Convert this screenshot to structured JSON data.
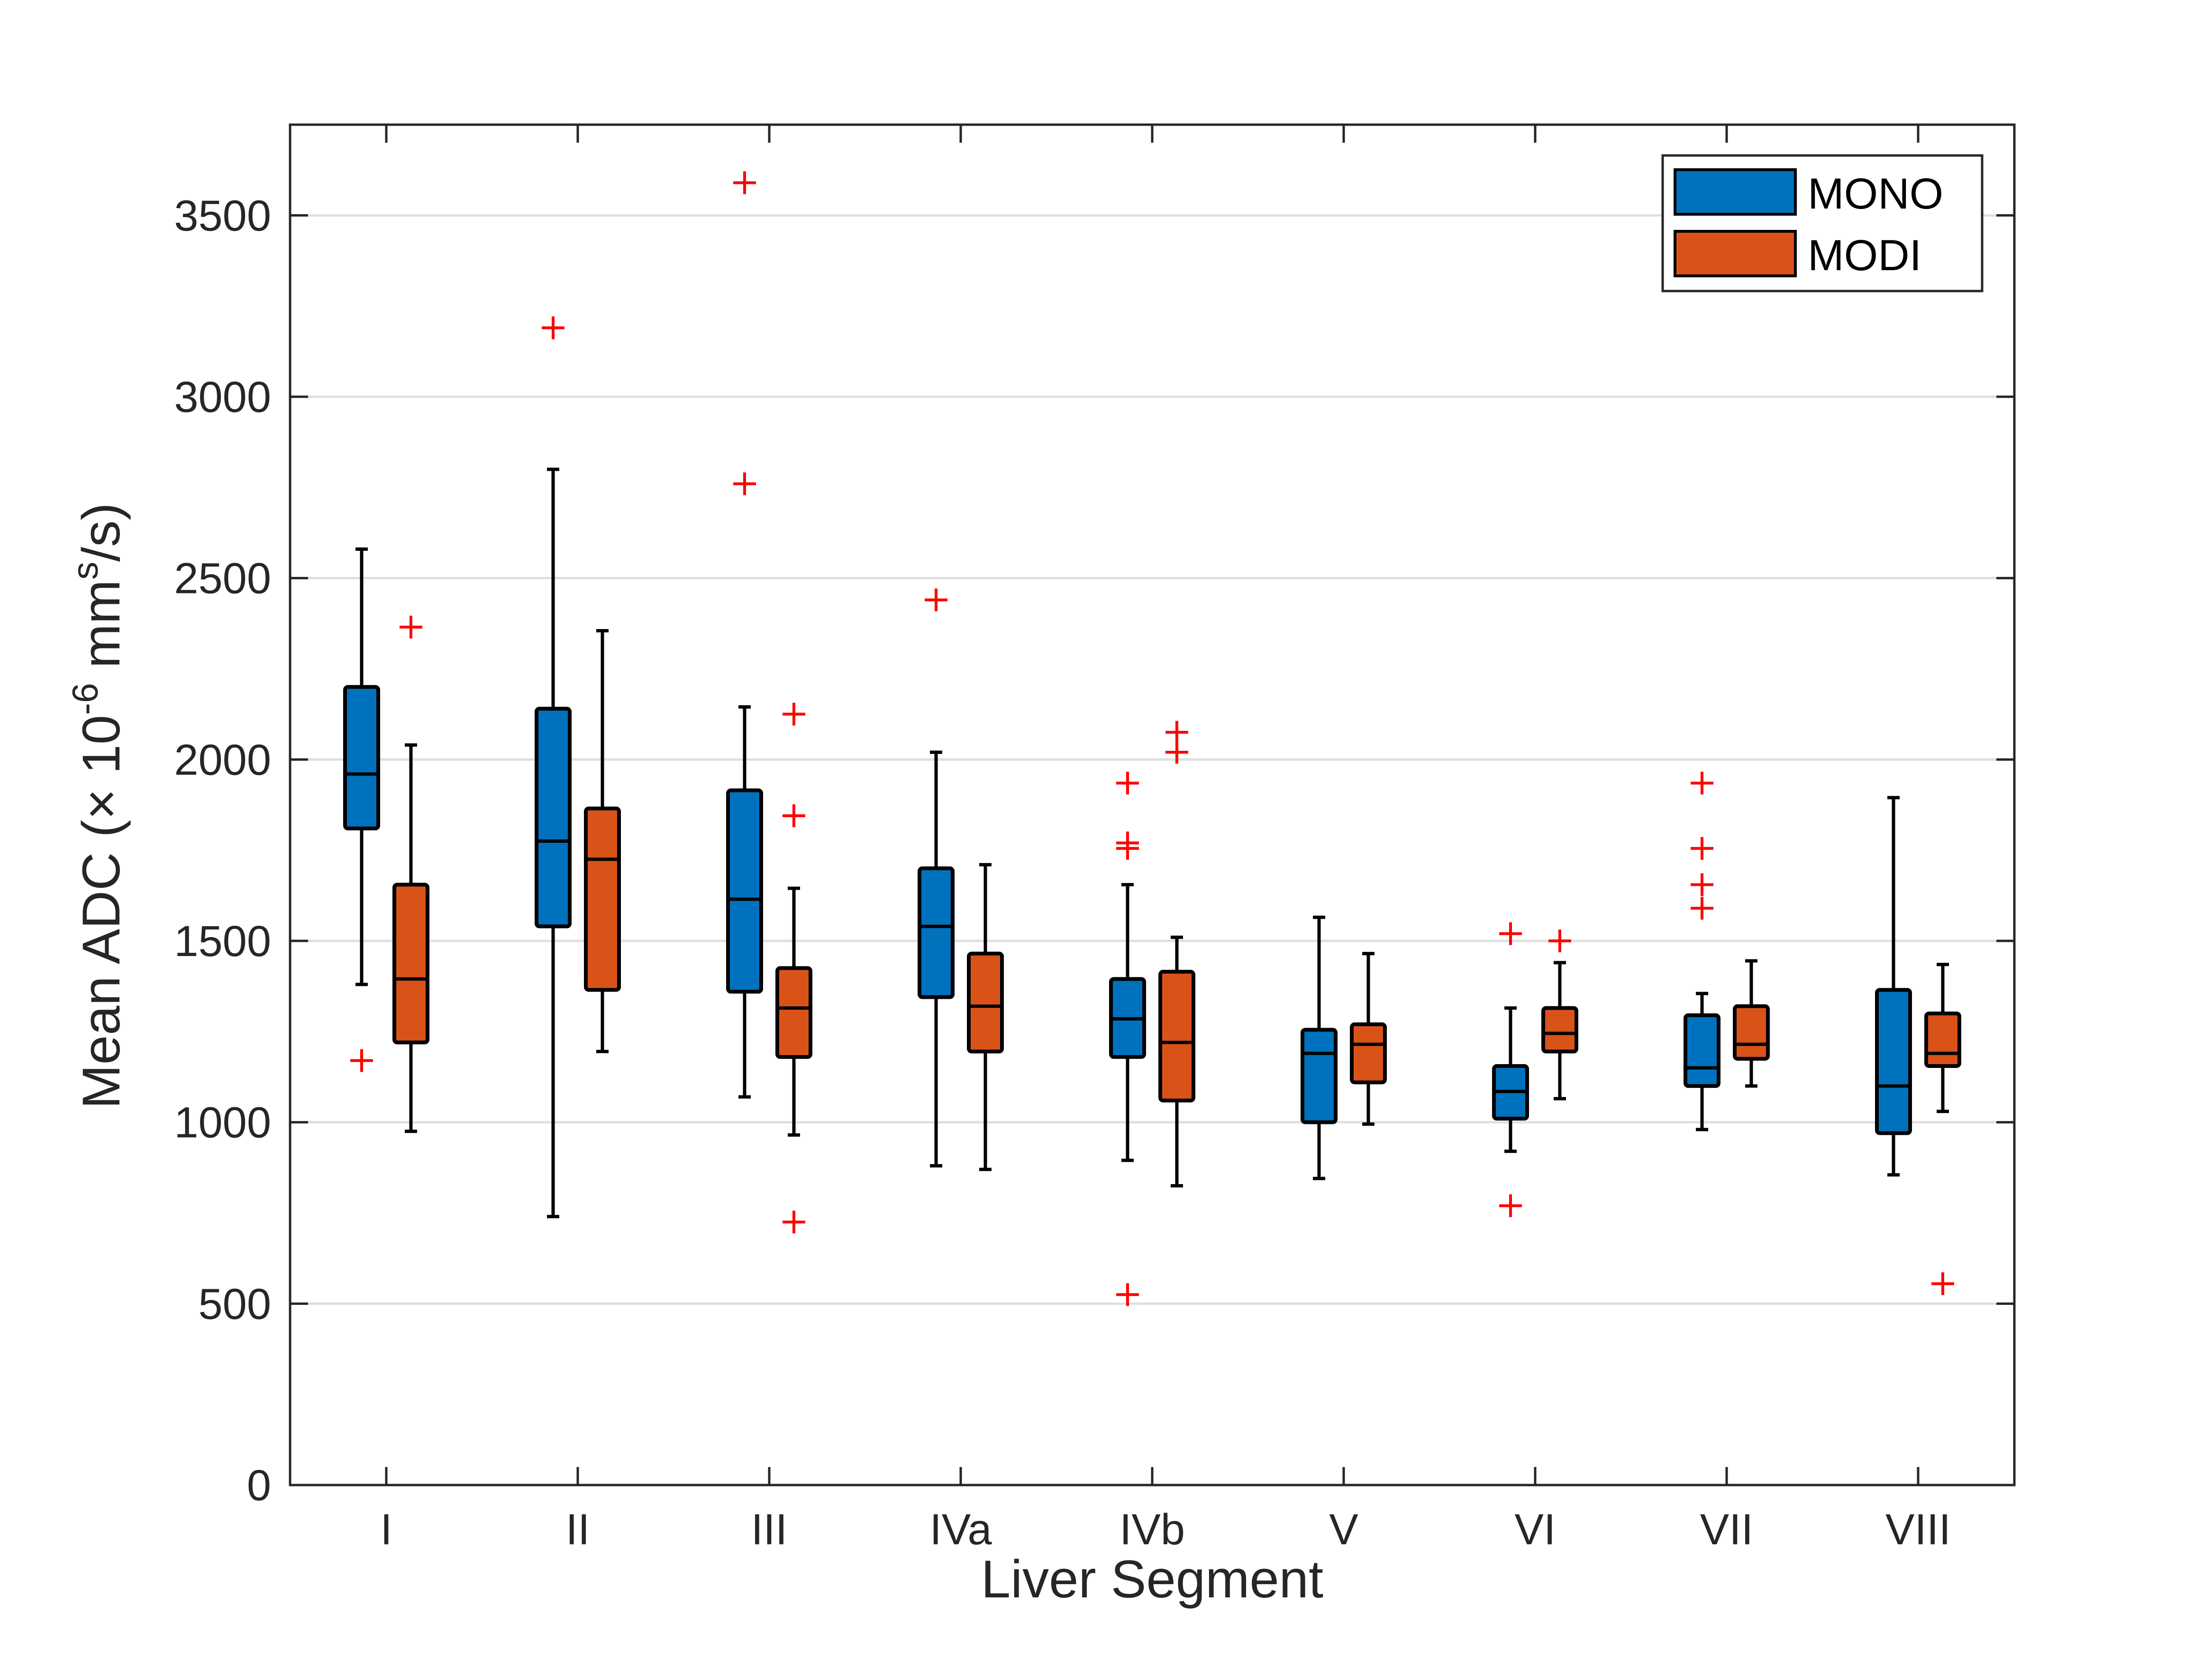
{
  "chart_data": {
    "type": "box",
    "title": "",
    "xlabel": "Liver Segment",
    "ylabel": {
      "main": "Mean ADC (",
      "times": "×",
      "ten": " 10",
      "exp": "-6",
      "unit": " mm",
      "unit_exp": "s",
      "end": "/s)"
    },
    "ylim": [
      0,
      3750
    ],
    "yticks": [
      0,
      500,
      1000,
      1500,
      2000,
      2500,
      3000,
      3500
    ],
    "ytick_labels": [
      "0",
      "500",
      "1000",
      "1500",
      "2000",
      "2500",
      "3000",
      "3500"
    ],
    "grid": "horizontal",
    "legend_position": "top-right",
    "categories": [
      "I",
      "II",
      "III",
      "IVa",
      "IVb",
      "V",
      "VI",
      "VII",
      "VIII"
    ],
    "series": [
      {
        "name": "MONO",
        "color": "#0072BD",
        "boxes": [
          {
            "whisker_low": 1380,
            "q1": 1810,
            "median": 1960,
            "q3": 2200,
            "whisker_high": 2580,
            "outliers": [
              1170
            ]
          },
          {
            "whisker_low": 740,
            "q1": 1540,
            "median": 1775,
            "q3": 2140,
            "whisker_high": 2800,
            "outliers": [
              3190
            ]
          },
          {
            "whisker_low": 1070,
            "q1": 1360,
            "median": 1615,
            "q3": 1915,
            "whisker_high": 2145,
            "outliers": [
              3590,
              2760
            ]
          },
          {
            "whisker_low": 880,
            "q1": 1345,
            "median": 1540,
            "q3": 1700,
            "whisker_high": 2020,
            "outliers": [
              2440
            ]
          },
          {
            "whisker_low": 895,
            "q1": 1180,
            "median": 1285,
            "q3": 1395,
            "whisker_high": 1655,
            "outliers": [
              1935,
              1770,
              1755,
              525
            ]
          },
          {
            "whisker_low": 845,
            "q1": 1000,
            "median": 1190,
            "q3": 1255,
            "whisker_high": 1565,
            "outliers": []
          },
          {
            "whisker_low": 920,
            "q1": 1010,
            "median": 1085,
            "q3": 1155,
            "whisker_high": 1315,
            "outliers": [
              1520,
              770
            ]
          },
          {
            "whisker_low": 980,
            "q1": 1100,
            "median": 1150,
            "q3": 1295,
            "whisker_high": 1355,
            "outliers": [
              1935,
              1755,
              1655,
              1590
            ]
          },
          {
            "whisker_low": 855,
            "q1": 970,
            "median": 1100,
            "q3": 1365,
            "whisker_high": 1895,
            "outliers": []
          }
        ]
      },
      {
        "name": "MODI",
        "color": "#D95319",
        "boxes": [
          {
            "whisker_low": 975,
            "q1": 1220,
            "median": 1395,
            "q3": 1655,
            "whisker_high": 2040,
            "outliers": [
              2365
            ]
          },
          {
            "whisker_low": 1195,
            "q1": 1365,
            "median": 1725,
            "q3": 1865,
            "whisker_high": 2355,
            "outliers": []
          },
          {
            "whisker_low": 965,
            "q1": 1180,
            "median": 1315,
            "q3": 1425,
            "whisker_high": 1645,
            "outliers": [
              2125,
              1845,
              725
            ]
          },
          {
            "whisker_low": 870,
            "q1": 1195,
            "median": 1320,
            "q3": 1465,
            "whisker_high": 1710,
            "outliers": []
          },
          {
            "whisker_low": 825,
            "q1": 1060,
            "median": 1220,
            "q3": 1415,
            "whisker_high": 1510,
            "outliers": [
              2075,
              2020
            ]
          },
          {
            "whisker_low": 995,
            "q1": 1110,
            "median": 1215,
            "q3": 1270,
            "whisker_high": 1465,
            "outliers": []
          },
          {
            "whisker_low": 1065,
            "q1": 1195,
            "median": 1245,
            "q3": 1315,
            "whisker_high": 1440,
            "outliers": [
              1500
            ]
          },
          {
            "whisker_low": 1100,
            "q1": 1175,
            "median": 1215,
            "q3": 1320,
            "whisker_high": 1445,
            "outliers": []
          },
          {
            "whisker_low": 1030,
            "q1": 1155,
            "median": 1190,
            "q3": 1300,
            "whisker_high": 1435,
            "outliers": [
              555
            ]
          }
        ]
      }
    ]
  },
  "colors": {
    "outlier": "#FF0000",
    "axis": "#262626",
    "grid": "#DFDFDF",
    "box_edge": "#000000"
  }
}
